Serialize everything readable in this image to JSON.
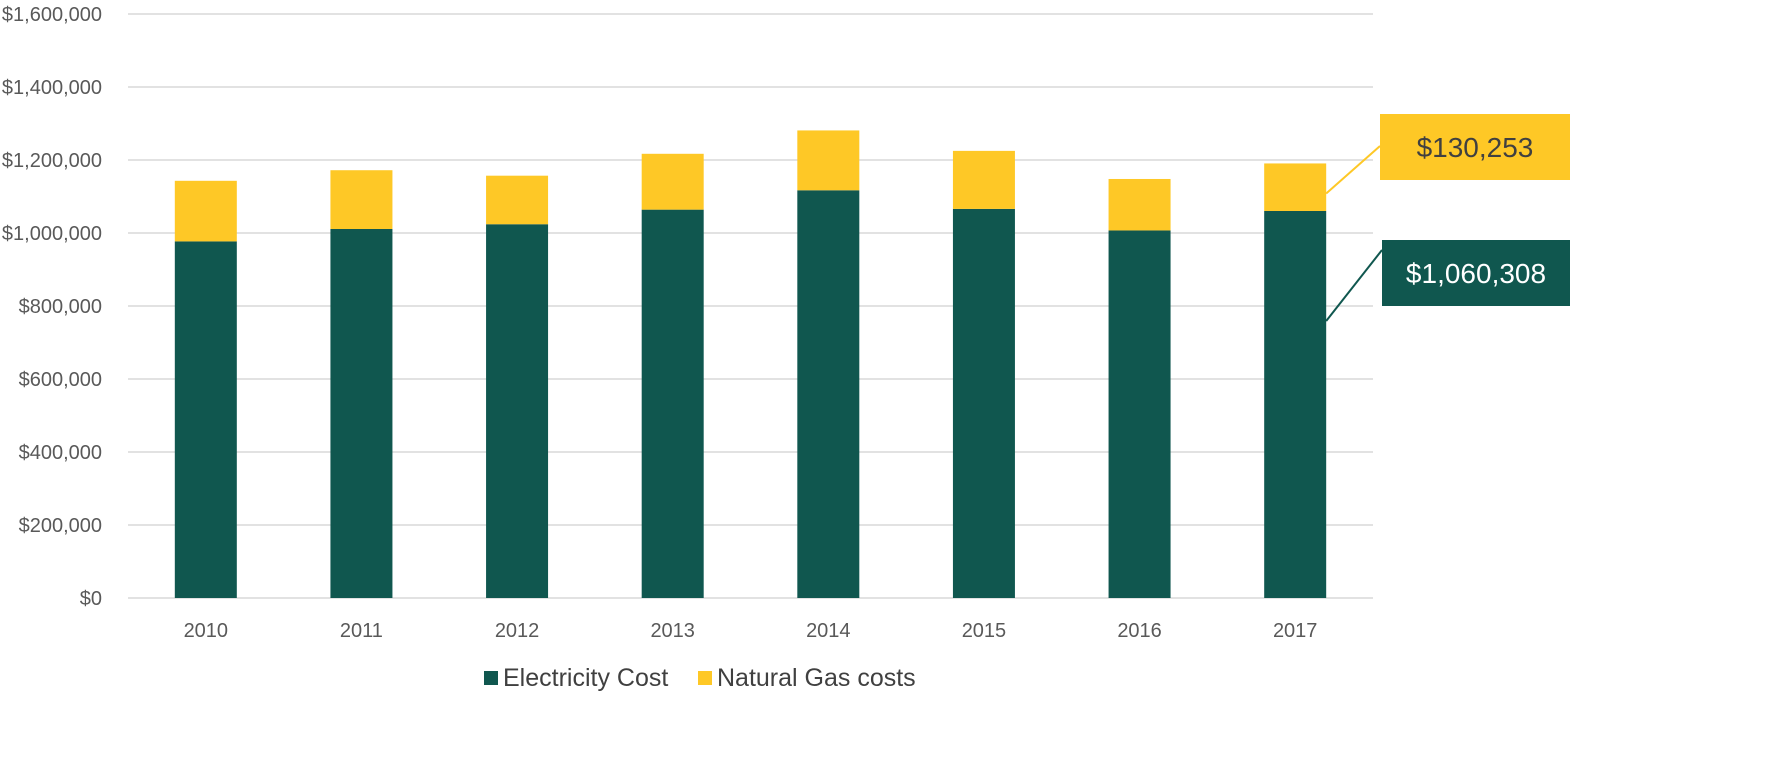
{
  "chart_data": {
    "type": "bar",
    "stacked": true,
    "categories": [
      "2010",
      "2011",
      "2012",
      "2013",
      "2014",
      "2015",
      "2016",
      "2017"
    ],
    "series": [
      {
        "name": "Electricity Cost",
        "color": "#10574f",
        "values": [
          977000,
          1011000,
          1024000,
          1064000,
          1117000,
          1066000,
          1007000,
          1060308
        ]
      },
      {
        "name": "Natural Gas costs",
        "color": "#fec826",
        "values": [
          166000,
          161000,
          133000,
          153000,
          164000,
          159000,
          141000,
          130253
        ]
      }
    ],
    "ylim": [
      0,
      1600000
    ],
    "yticks": [
      0,
      200000,
      400000,
      600000,
      800000,
      1000000,
      1200000,
      1400000,
      1600000
    ],
    "ytick_labels": [
      "$0",
      "$200,000",
      "$400,000",
      "$600,000",
      "$800,000",
      "$1,000,000",
      "$1,200,000",
      "$1,400,000",
      "$1,600,000"
    ],
    "grid": true,
    "legend_position": "bottom",
    "annotations": [
      {
        "label": "$130,253",
        "series": "Natural Gas costs",
        "category": "2017",
        "color": "#fec826",
        "text_color": "#404040"
      },
      {
        "label": "$1,060,308",
        "series": "Electricity Cost",
        "category": "2017",
        "color": "#10574f",
        "text_color": "#ffffff"
      }
    ]
  }
}
